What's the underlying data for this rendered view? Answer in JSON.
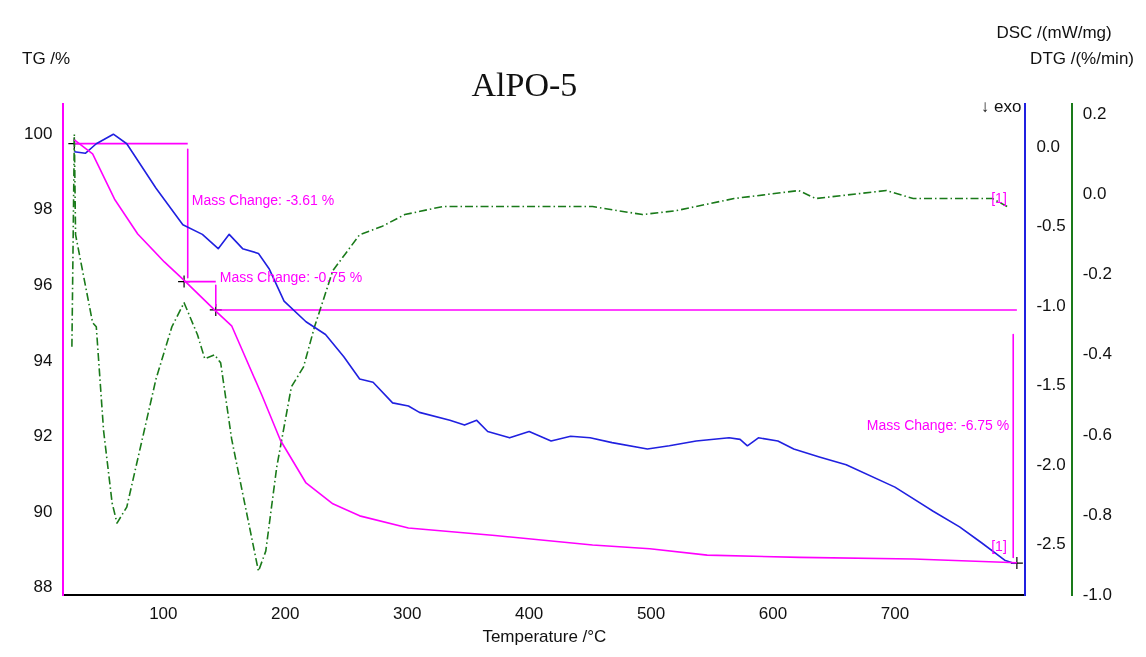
{
  "chart_data": {
    "type": "line",
    "title": "AlPO-5",
    "xlabel": "Temperature /°C",
    "ylabel": "TG /%",
    "y2label": "DSC /(mW/mg)",
    "y3label": "DTG /(%/min)",
    "xlim": [
      18,
      807
    ],
    "xticks": [
      100,
      200,
      300,
      400,
      500,
      600,
      700
    ],
    "ylim": [
      87.8,
      100.8
    ],
    "yticks": [
      88,
      90,
      92,
      94,
      96,
      98,
      100
    ],
    "y2lim": [
      -2.82,
      0.27
    ],
    "y2ticks": [
      {
        "value": 0,
        "label": "0.0"
      },
      {
        "value": -0.5,
        "label": "-0.5"
      },
      {
        "value": -1,
        "label": "-1.0"
      },
      {
        "value": -1.5,
        "label": "-1.5"
      },
      {
        "value": -2,
        "label": "-2.0"
      },
      {
        "value": -2.5,
        "label": "-2.5"
      }
    ],
    "y3lim": [
      -1.0,
      0.226
    ],
    "y3ticks": [
      {
        "value": 0.2,
        "label": "0.2"
      },
      {
        "value": 0,
        "label": "0.0"
      },
      {
        "value": -0.2,
        "label": "-0.2"
      },
      {
        "value": -0.4,
        "label": "-0.4"
      },
      {
        "value": -0.6,
        "label": "-0.6"
      },
      {
        "value": -0.8,
        "label": "-0.8"
      },
      {
        "value": -1,
        "label": "-1.0"
      }
    ],
    "grid": false,
    "legend": false,
    "series": [
      {
        "type": "line",
        "color": "#ff00ff",
        "axis": "y",
        "line_style": "solid",
        "x": [
          27,
          42,
          60,
          79,
          100.8,
          117.5,
          143,
          156,
          181,
          196,
          217,
          239,
          261,
          301,
          372,
          452,
          499,
          546,
          622,
          715,
          800
        ],
        "values": [
          99.85,
          99.48,
          98.28,
          97.36,
          96.62,
          96.12,
          95.32,
          94.93,
          93.08,
          91.9,
          90.77,
          90.22,
          89.9,
          89.58,
          89.38,
          89.13,
          89.03,
          88.86,
          88.8,
          88.76,
          88.66
        ]
      },
      {
        "type": "line",
        "color": "#2020e0",
        "axis": "y2",
        "line_style": "solid",
        "x": [
          27,
          36,
          45,
          59,
          70,
          94,
          116,
          132,
          145,
          154,
          165,
          178,
          187,
          199,
          217,
          233,
          248,
          261,
          272,
          288,
          301,
          310,
          335,
          347,
          357,
          366,
          384,
          400,
          418,
          434,
          450,
          468,
          497,
          515,
          537,
          564,
          573,
          579,
          588,
          604,
          617,
          638,
          660,
          700,
          731,
          753,
          771,
          790,
          798
        ],
        "values": [
          -0.03,
          -0.04,
          0.02,
          0.08,
          0.02,
          -0.26,
          -0.49,
          -0.55,
          -0.64,
          -0.55,
          -0.64,
          -0.67,
          -0.77,
          -0.97,
          -1.1,
          -1.18,
          -1.32,
          -1.46,
          -1.48,
          -1.61,
          -1.63,
          -1.67,
          -1.72,
          -1.75,
          -1.72,
          -1.79,
          -1.83,
          -1.79,
          -1.85,
          -1.82,
          -1.83,
          -1.86,
          -1.9,
          -1.88,
          -1.85,
          -1.83,
          -1.84,
          -1.88,
          -1.83,
          -1.85,
          -1.9,
          -1.95,
          -2.0,
          -2.14,
          -2.29,
          -2.39,
          -2.49,
          -2.6,
          -2.62
        ]
      },
      {
        "type": "line",
        "color": "#1a7a1a",
        "axis": "y3",
        "line_style": "dashed",
        "x": [
          25,
          27,
          28,
          42,
          45,
          51,
          58,
          62,
          70,
          82,
          94,
          107,
          117,
          128,
          134,
          142,
          147,
          156,
          168,
          178,
          184,
          193,
          205,
          215,
          224,
          239,
          261,
          279,
          298,
          329,
          357,
          403,
          452,
          493,
          521,
          568,
          621,
          635,
          693,
          715,
          762,
          780,
          792
        ],
        "values": [
          -0.38,
          0.15,
          -0.1,
          -0.32,
          -0.33,
          -0.59,
          -0.77,
          -0.82,
          -0.78,
          -0.62,
          -0.46,
          -0.33,
          -0.27,
          -0.35,
          -0.41,
          -0.4,
          -0.42,
          -0.61,
          -0.79,
          -0.94,
          -0.89,
          -0.68,
          -0.48,
          -0.43,
          -0.33,
          -0.19,
          -0.1,
          -0.08,
          -0.05,
          -0.03,
          -0.03,
          -0.03,
          -0.03,
          -0.05,
          -0.04,
          -0.01,
          0.01,
          -0.01,
          0.01,
          -0.01,
          -0.01,
          -0.01,
          -0.03
        ]
      },
      {
        "type": "line",
        "color": "#ff00ff",
        "axis": "y",
        "line_style": "solid",
        "x": [
          27,
          120
        ],
        "values": [
          99.75,
          99.75
        ]
      },
      {
        "type": "line",
        "color": "#ff00ff",
        "axis": "y",
        "line_style": "solid",
        "x": [
          117,
          143
        ],
        "values": [
          96.1,
          96.1
        ]
      },
      {
        "type": "line",
        "color": "#ff00ff",
        "axis": "y",
        "line_style": "solid",
        "x": [
          143,
          800
        ],
        "values": [
          95.35,
          95.35
        ]
      },
      {
        "type": "line",
        "color": "#ff00ff",
        "axis": "y",
        "line_style": "solid",
        "x": [
          120,
          120
        ],
        "values": [
          99.6,
          96.2
        ]
      },
      {
        "type": "line",
        "color": "#ff00ff",
        "axis": "y",
        "line_style": "solid",
        "x": [
          143,
          143
        ],
        "values": [
          96.0,
          95.45
        ]
      },
      {
        "type": "line",
        "color": "#ff00ff",
        "axis": "y",
        "line_style": "solid",
        "x": [
          797,
          797
        ],
        "values": [
          94.7,
          88.8
        ]
      },
      {
        "type": "scatter",
        "color": "#000000",
        "axis": "y",
        "marker": "cross",
        "x": [
          27,
          117,
          143,
          800
        ],
        "values": [
          99.75,
          96.1,
          95.35,
          88.65
        ]
      }
    ],
    "annotations": [
      {
        "text": "Mass Change: -3.61 %",
        "x": 120,
        "y": 98.05
      },
      {
        "text": "Mass Change: -0.75 %",
        "x": 143,
        "y": 96.0
      },
      {
        "text": "Mass Change: -6.75 %",
        "x": 797,
        "y": 92.1
      },
      {
        "text": "[1]",
        "x": 795,
        "y": 98.1
      },
      {
        "text": "[1]",
        "x": 795,
        "y": 88.9
      },
      "↓ exo"
    ]
  }
}
